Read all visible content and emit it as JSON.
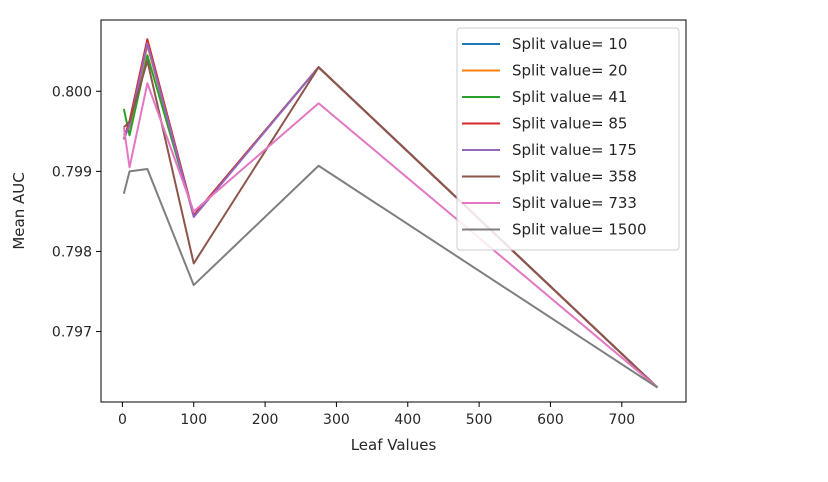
{
  "chart_data": {
    "type": "line",
    "title": "",
    "xlabel": "Leaf Values",
    "ylabel": "Mean AUC",
    "xlim": [
      -30,
      790
    ],
    "ylim": [
      0.79612,
      0.80089
    ],
    "xticks": [
      0,
      100,
      200,
      300,
      400,
      500,
      600,
      700
    ],
    "xtick_labels": [
      "0",
      "100",
      "200",
      "300",
      "400",
      "500",
      "600",
      "700"
    ],
    "yticks": [
      0.797,
      0.798,
      0.799,
      0.8
    ],
    "ytick_labels": [
      "0.797",
      "0.798",
      "0.799",
      "0.800"
    ],
    "grid": false,
    "legend_position": "top-right",
    "x": [
      2,
      10,
      35,
      100,
      275,
      750
    ],
    "series": [
      {
        "name": "Split value= 10",
        "color": "#1f77b4",
        "values": [
          0.79945,
          0.79955,
          0.80058,
          0.79845,
          0.8003,
          0.7963
        ]
      },
      {
        "name": "Split value= 20",
        "color": "#ff7f0e",
        "values": [
          0.79945,
          0.79955,
          0.80058,
          0.79845,
          0.8003,
          0.7963
        ]
      },
      {
        "name": "Split value= 41",
        "color": "#2ca02c",
        "values": [
          0.79978,
          0.79945,
          0.80045,
          0.79845,
          0.8003,
          0.7963
        ]
      },
      {
        "name": "Split value= 85",
        "color": "#d62728",
        "values": [
          0.7994,
          0.79963,
          0.80065,
          0.79845,
          0.8003,
          0.7963
        ]
      },
      {
        "name": "Split value= 175",
        "color": "#9467bd",
        "values": [
          0.7994,
          0.79958,
          0.8006,
          0.79843,
          0.8003,
          0.7963
        ]
      },
      {
        "name": "Split value= 358",
        "color": "#8c564b",
        "values": [
          0.79955,
          0.79962,
          0.80038,
          0.79785,
          0.8003,
          0.7963
        ]
      },
      {
        "name": "Split value= 733",
        "color": "#e377c2",
        "values": [
          0.79955,
          0.79905,
          0.8001,
          0.7985,
          0.79985,
          0.7963
        ]
      },
      {
        "name": "Split value= 1500",
        "color": "#7f7f7f",
        "values": [
          0.79872,
          0.799,
          0.79903,
          0.79758,
          0.79907,
          0.7963
        ]
      }
    ]
  }
}
